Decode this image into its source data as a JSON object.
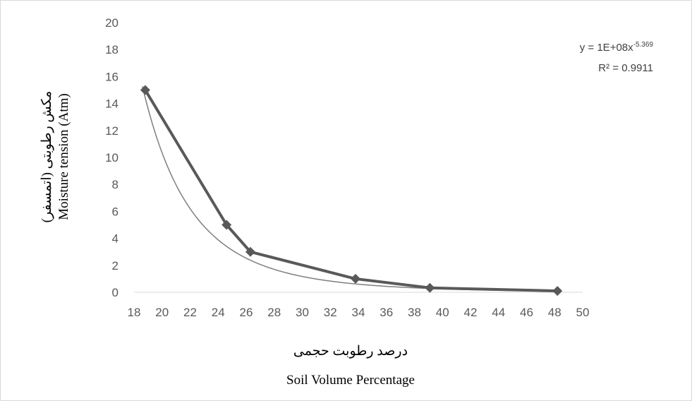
{
  "chart_data": {
    "type": "line",
    "xlabel_fa": "درصد رطوبت حجمی",
    "xlabel_en": "Soil Volume Percentage",
    "ylabel_fa": "مکش رطوبتی (اتمسفر)",
    "ylabel_en": "Moisture tension (Atm)",
    "xlim": [
      18,
      50
    ],
    "ylim": [
      0,
      20
    ],
    "x_ticks": [
      "18",
      "20",
      "22",
      "24",
      "26",
      "28",
      "30",
      "32",
      "34",
      "36",
      "38",
      "40",
      "42",
      "44",
      "46",
      "48",
      "50"
    ],
    "y_ticks": [
      "0",
      "2",
      "4",
      "6",
      "8",
      "10",
      "12",
      "14",
      "16",
      "18",
      "20"
    ],
    "grid": false,
    "series": [
      {
        "marker": "diamond",
        "color": "#595959",
        "x": [
          18.8,
          24.6,
          26.3,
          33.8,
          39.1,
          48.2
        ],
        "y": [
          15,
          5,
          3,
          1,
          0.33,
          0.1
        ]
      }
    ],
    "trendline": {
      "type": "power",
      "coefficient": 100000000,
      "exponent": -5.369,
      "equation_main": "y = 1E+08x",
      "equation_exponent": "-5.369",
      "r_squared": "R² = 0.9911",
      "color": "#7f7f7f"
    }
  }
}
